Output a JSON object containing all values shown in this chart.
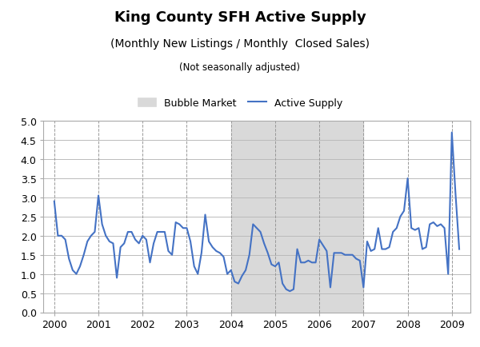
{
  "title": "King County SFH Active Supply",
  "subtitle1": "(Monthly New Listings / Monthly  Closed Sales)",
  "subtitle2": "(Not seasonally adjusted)",
  "ylim": [
    0.0,
    5.0
  ],
  "yticks": [
    0.0,
    0.5,
    1.0,
    1.5,
    2.0,
    2.5,
    3.0,
    3.5,
    4.0,
    4.5,
    5.0
  ],
  "bubble_start": 2004.0,
  "bubble_end": 2007.0,
  "line_color": "#4472C4",
  "bubble_color": "#D9D9D9",
  "background_color": "#FFFFFF",
  "data": [
    [
      2000.0,
      2.9
    ],
    [
      2000.083,
      2.0
    ],
    [
      2000.167,
      2.0
    ],
    [
      2000.25,
      1.9
    ],
    [
      2000.333,
      1.4
    ],
    [
      2000.417,
      1.1
    ],
    [
      2000.5,
      1.0
    ],
    [
      2000.583,
      1.2
    ],
    [
      2000.667,
      1.5
    ],
    [
      2000.75,
      1.85
    ],
    [
      2000.833,
      2.0
    ],
    [
      2000.917,
      2.1
    ],
    [
      2001.0,
      3.05
    ],
    [
      2001.083,
      2.3
    ],
    [
      2001.167,
      2.0
    ],
    [
      2001.25,
      1.85
    ],
    [
      2001.333,
      1.8
    ],
    [
      2001.417,
      0.9
    ],
    [
      2001.5,
      1.7
    ],
    [
      2001.583,
      1.8
    ],
    [
      2001.667,
      2.1
    ],
    [
      2001.75,
      2.1
    ],
    [
      2001.833,
      1.9
    ],
    [
      2001.917,
      1.8
    ],
    [
      2002.0,
      2.0
    ],
    [
      2002.083,
      1.9
    ],
    [
      2002.167,
      1.3
    ],
    [
      2002.25,
      1.8
    ],
    [
      2002.333,
      2.1
    ],
    [
      2002.417,
      2.1
    ],
    [
      2002.5,
      2.1
    ],
    [
      2002.583,
      1.6
    ],
    [
      2002.667,
      1.5
    ],
    [
      2002.75,
      2.35
    ],
    [
      2002.833,
      2.3
    ],
    [
      2002.917,
      2.2
    ],
    [
      2003.0,
      2.2
    ],
    [
      2003.083,
      1.85
    ],
    [
      2003.167,
      1.2
    ],
    [
      2003.25,
      1.0
    ],
    [
      2003.333,
      1.55
    ],
    [
      2003.417,
      2.55
    ],
    [
      2003.5,
      1.85
    ],
    [
      2003.583,
      1.7
    ],
    [
      2003.667,
      1.6
    ],
    [
      2003.75,
      1.55
    ],
    [
      2003.833,
      1.45
    ],
    [
      2003.917,
      1.0
    ],
    [
      2004.0,
      1.1
    ],
    [
      2004.083,
      0.8
    ],
    [
      2004.167,
      0.75
    ],
    [
      2004.25,
      0.95
    ],
    [
      2004.333,
      1.1
    ],
    [
      2004.417,
      1.5
    ],
    [
      2004.5,
      2.3
    ],
    [
      2004.583,
      2.2
    ],
    [
      2004.667,
      2.1
    ],
    [
      2004.75,
      1.8
    ],
    [
      2004.833,
      1.55
    ],
    [
      2004.917,
      1.25
    ],
    [
      2005.0,
      1.2
    ],
    [
      2005.083,
      1.3
    ],
    [
      2005.167,
      0.75
    ],
    [
      2005.25,
      0.6
    ],
    [
      2005.333,
      0.55
    ],
    [
      2005.417,
      0.6
    ],
    [
      2005.5,
      1.65
    ],
    [
      2005.583,
      1.3
    ],
    [
      2005.667,
      1.3
    ],
    [
      2005.75,
      1.35
    ],
    [
      2005.833,
      1.3
    ],
    [
      2005.917,
      1.3
    ],
    [
      2006.0,
      1.9
    ],
    [
      2006.083,
      1.75
    ],
    [
      2006.167,
      1.6
    ],
    [
      2006.25,
      0.65
    ],
    [
      2006.333,
      1.55
    ],
    [
      2006.417,
      1.55
    ],
    [
      2006.5,
      1.55
    ],
    [
      2006.583,
      1.5
    ],
    [
      2006.667,
      1.5
    ],
    [
      2006.75,
      1.5
    ],
    [
      2006.833,
      1.4
    ],
    [
      2006.917,
      1.35
    ],
    [
      2007.0,
      0.65
    ],
    [
      2007.083,
      1.85
    ],
    [
      2007.167,
      1.6
    ],
    [
      2007.25,
      1.65
    ],
    [
      2007.333,
      2.2
    ],
    [
      2007.417,
      1.65
    ],
    [
      2007.5,
      1.65
    ],
    [
      2007.583,
      1.7
    ],
    [
      2007.667,
      2.1
    ],
    [
      2007.75,
      2.2
    ],
    [
      2007.833,
      2.5
    ],
    [
      2007.917,
      2.65
    ],
    [
      2008.0,
      3.5
    ],
    [
      2008.083,
      2.2
    ],
    [
      2008.167,
      2.15
    ],
    [
      2008.25,
      2.2
    ],
    [
      2008.333,
      1.65
    ],
    [
      2008.417,
      1.7
    ],
    [
      2008.5,
      2.3
    ],
    [
      2008.583,
      2.35
    ],
    [
      2008.667,
      2.25
    ],
    [
      2008.75,
      2.3
    ],
    [
      2008.833,
      2.2
    ],
    [
      2008.917,
      1.0
    ],
    [
      2009.0,
      4.7
    ],
    [
      2009.083,
      3.1
    ],
    [
      2009.167,
      1.65
    ]
  ],
  "xtick_years": [
    2000,
    2001,
    2002,
    2003,
    2004,
    2005,
    2006,
    2007,
    2008,
    2009
  ],
  "dashed_years": [
    2000,
    2001,
    2002,
    2003,
    2004,
    2005,
    2006,
    2007,
    2008,
    2009
  ],
  "xlim": [
    1999.75,
    2009.42
  ]
}
